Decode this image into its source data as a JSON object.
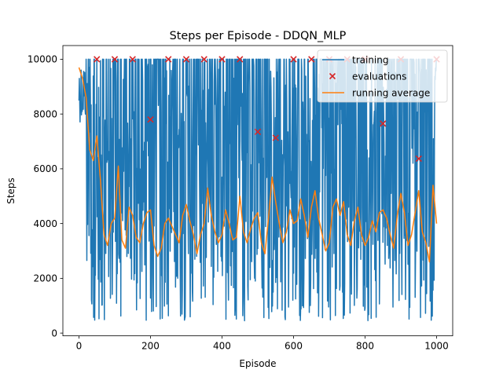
{
  "chart_data": {
    "type": "line",
    "title": "Steps per Episode - DDQN_MLP",
    "xlabel": "Episode",
    "ylabel": "Steps",
    "xlim": [
      -45,
      1045
    ],
    "ylim": [
      -100,
      10500
    ],
    "xticks": [
      0,
      200,
      400,
      600,
      800,
      1000
    ],
    "yticks": [
      0,
      2000,
      4000,
      6000,
      8000,
      10000
    ],
    "grid": false,
    "legend_position": "upper right",
    "series": [
      {
        "name": "training",
        "kind": "line",
        "color": "#1f77b4",
        "n_episodes": 1000,
        "y_max": 10000,
        "min_approx": 450,
        "note_values": "noisy per-episode steps: early episodes near 10000, later oscillating between ~500 and 10000"
      },
      {
        "name": "evaluations",
        "kind": "scatter",
        "marker": "x",
        "color": "#d62728",
        "x": [
          50,
          100,
          150,
          200,
          250,
          300,
          350,
          400,
          450,
          500,
          550,
          600,
          650,
          700,
          750,
          800,
          850,
          900,
          950,
          1000
        ],
        "y": [
          10000,
          10000,
          10000,
          7800,
          10000,
          10000,
          10000,
          10000,
          10000,
          7350,
          7130,
          10000,
          10000,
          10000,
          10000,
          10000,
          7650,
          10000,
          6370,
          10000
        ]
      },
      {
        "name": "running average",
        "kind": "line",
        "color": "#ff7f0e",
        "x": [
          0,
          10,
          20,
          30,
          40,
          50,
          60,
          70,
          80,
          90,
          100,
          110,
          120,
          130,
          140,
          150,
          160,
          170,
          180,
          190,
          200,
          210,
          220,
          230,
          240,
          250,
          260,
          270,
          280,
          290,
          300,
          310,
          320,
          330,
          340,
          350,
          360,
          370,
          380,
          390,
          400,
          410,
          420,
          430,
          440,
          450,
          460,
          470,
          480,
          490,
          500,
          510,
          520,
          530,
          540,
          550,
          560,
          570,
          580,
          590,
          600,
          610,
          620,
          630,
          640,
          650,
          660,
          670,
          680,
          690,
          700,
          710,
          720,
          730,
          740,
          750,
          760,
          770,
          780,
          790,
          800,
          810,
          820,
          830,
          840,
          850,
          860,
          870,
          880,
          890,
          900,
          910,
          920,
          930,
          940,
          950,
          960,
          970,
          980,
          990,
          1000
        ],
        "y": [
          9700,
          9300,
          8600,
          6700,
          6300,
          7200,
          5600,
          3600,
          3200,
          4000,
          4200,
          6100,
          3400,
          3100,
          4600,
          4300,
          3500,
          3300,
          4000,
          4400,
          4500,
          3200,
          2800,
          3100,
          4000,
          4200,
          3900,
          3600,
          3300,
          4300,
          4700,
          4100,
          3600,
          2900,
          3600,
          4000,
          5300,
          4300,
          3700,
          3300,
          3600,
          4500,
          4000,
          3400,
          3500,
          5000,
          3700,
          3300,
          3800,
          4200,
          4400,
          3300,
          2900,
          4200,
          5700,
          4800,
          4000,
          3300,
          3700,
          4500,
          4000,
          4100,
          4900,
          4300,
          3500,
          4600,
          5200,
          4200,
          3600,
          3000,
          3300,
          4600,
          4900,
          4300,
          4800,
          3600,
          3200,
          4100,
          4600,
          3600,
          3200,
          3500,
          4100,
          3700,
          4400,
          4500,
          4200,
          3600,
          3100,
          4300,
          5100,
          4400,
          3200,
          3600,
          4400,
          5200,
          3700,
          3300,
          2600,
          5400,
          4000
        ]
      }
    ],
    "legend": [
      "training",
      "evaluations",
      "running average"
    ]
  }
}
